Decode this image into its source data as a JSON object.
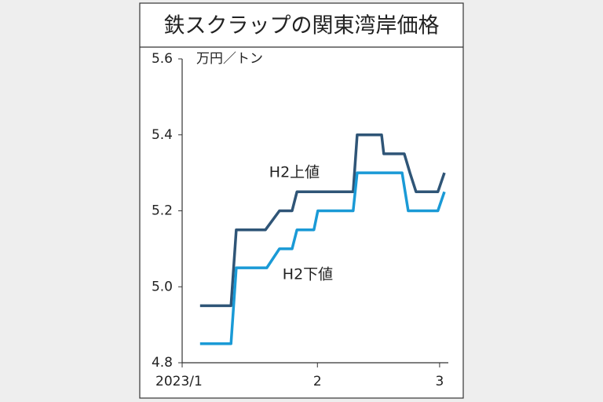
{
  "chart_data": {
    "type": "line",
    "title": "鉄スクラップの関東湾岸価格",
    "y_label": "万円／トン",
    "xlim": [
      0,
      61
    ],
    "xticks": [
      {
        "value": 0,
        "label": "2023/1"
      },
      {
        "value": 31,
        "label": "2"
      },
      {
        "value": 59,
        "label": "3"
      }
    ],
    "ylim": [
      4.8,
      5.6
    ],
    "yticks": [
      4.8,
      {
        "value": 5,
        "label": "5.0"
      },
      5.2,
      5.4,
      5.6
    ],
    "annotations": [
      "H2上値",
      "H2下値"
    ],
    "series": [
      {
        "name": "H2上値",
        "color": "#2f5577",
        "x": [
          4.1,
          11.2,
          12.4,
          19.1,
          22.3,
          25.2,
          26.3,
          39.2,
          40.1,
          45.7,
          46.2,
          50.9,
          52.2,
          53.6,
          58.6,
          60.1
        ],
        "values": [
          4.95,
          4.95,
          5.15,
          5.15,
          5.2,
          5.2,
          5.25,
          5.25,
          5.4,
          5.4,
          5.35,
          5.35,
          5.3,
          5.25,
          5.25,
          5.3
        ]
      },
      {
        "name": "H2下値",
        "color": "#1a9ad6",
        "x": [
          4.1,
          11.2,
          12.4,
          19.4,
          22.3,
          25.2,
          26.3,
          30.2,
          31.1,
          39.2,
          40.1,
          50.4,
          51.8,
          58.6,
          60.1
        ],
        "values": [
          4.85,
          4.85,
          5.05,
          5.05,
          5.1,
          5.1,
          5.15,
          5.15,
          5.2,
          5.2,
          5.3,
          5.3,
          5.2,
          5.2,
          5.25
        ]
      }
    ]
  }
}
